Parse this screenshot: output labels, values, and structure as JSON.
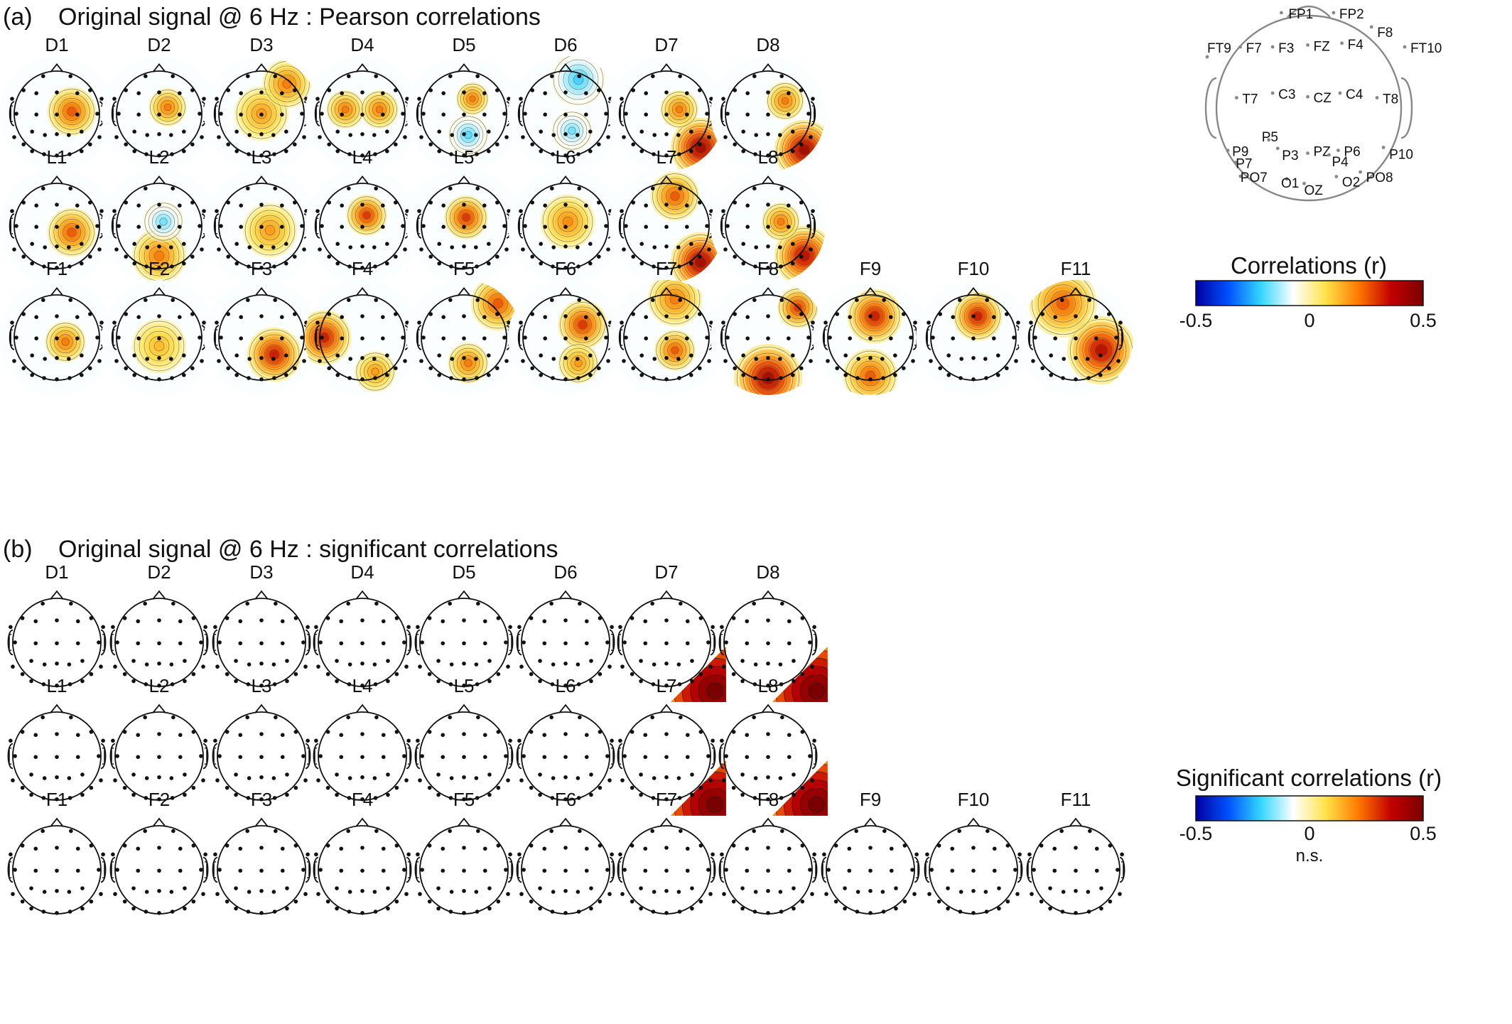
{
  "panel_a": {
    "letter": "(a)",
    "title": "Original signal @ 6 Hz : Pearson correlations",
    "rows": [
      [
        "D1",
        "D2",
        "D3",
        "D4",
        "D5",
        "D6",
        "D7",
        "D8"
      ],
      [
        "L1",
        "L2",
        "L3",
        "L4",
        "L5",
        "L6",
        "L7",
        "L8"
      ],
      [
        "F1",
        "F2",
        "F3",
        "F4",
        "F5",
        "F6",
        "F7",
        "F8",
        "F9",
        "F10",
        "F11"
      ]
    ],
    "hotspots": {
      "D1": [
        [
          0.35,
          -0.05,
          0.18,
          0.6
        ]
      ],
      "D2": [
        [
          0.2,
          -0.15,
          0.14,
          0.5
        ]
      ],
      "D3": [
        [
          0.0,
          0.0,
          0.2,
          0.4
        ],
        [
          0.6,
          -0.7,
          0.18,
          0.5
        ]
      ],
      "D4": [
        [
          -0.4,
          -0.1,
          0.14,
          0.5
        ],
        [
          0.4,
          -0.1,
          0.14,
          0.5
        ]
      ],
      "D5": [
        [
          0.2,
          -0.35,
          0.12,
          0.5
        ],
        [
          0.1,
          0.5,
          0.15,
          -0.45
        ]
      ],
      "D6": [
        [
          0.15,
          0.4,
          0.15,
          -0.4
        ],
        [
          0.3,
          -0.8,
          0.2,
          -0.5
        ]
      ],
      "D7": [
        [
          0.8,
          0.8,
          0.22,
          1
        ],
        [
          0.3,
          -0.1,
          0.14,
          0.5
        ]
      ],
      "D8": [
        [
          0.85,
          0.85,
          0.22,
          1
        ],
        [
          0.4,
          -0.3,
          0.14,
          0.5
        ]
      ],
      "L1": [
        [
          0.35,
          0.15,
          0.18,
          0.6
        ]
      ],
      "L2": [
        [
          0.0,
          0.7,
          0.2,
          0.5
        ],
        [
          0.1,
          -0.1,
          0.15,
          -0.4
        ]
      ],
      "L3": [
        [
          0.2,
          0.1,
          0.2,
          0.4
        ]
      ],
      "L4": [
        [
          0.1,
          -0.25,
          0.15,
          0.7
        ]
      ],
      "L5": [
        [
          0.05,
          -0.2,
          0.16,
          0.7
        ]
      ],
      "L6": [
        [
          0.05,
          -0.1,
          0.2,
          0.45
        ]
      ],
      "L7": [
        [
          0.8,
          0.85,
          0.22,
          1
        ],
        [
          0.2,
          -0.7,
          0.18,
          0.6
        ]
      ],
      "L8": [
        [
          0.85,
          0.7,
          0.22,
          0.9
        ],
        [
          0.3,
          -0.1,
          0.14,
          0.5
        ]
      ],
      "F1": [
        [
          0.2,
          0.1,
          0.15,
          0.5
        ]
      ],
      "F2": [
        [
          0.0,
          0.2,
          0.2,
          0.3
        ]
      ],
      "F3": [
        [
          0.3,
          0.4,
          0.2,
          0.8
        ]
      ],
      "F4": [
        [
          -0.9,
          0.0,
          0.2,
          0.8
        ],
        [
          0.3,
          0.8,
          0.15,
          0.4
        ]
      ],
      "F5": [
        [
          0.8,
          -0.8,
          0.2,
          0.6
        ],
        [
          0.1,
          0.6,
          0.15,
          0.5
        ]
      ],
      "F6": [
        [
          0.4,
          -0.3,
          0.18,
          0.7
        ],
        [
          0.3,
          0.6,
          0.15,
          0.4
        ]
      ],
      "F7": [
        [
          0.2,
          0.3,
          0.15,
          0.6
        ],
        [
          0.2,
          -0.9,
          0.2,
          0.5
        ]
      ],
      "F8": [
        [
          0.0,
          0.95,
          0.25,
          1
        ],
        [
          0.7,
          -0.7,
          0.15,
          0.7
        ]
      ],
      "F9": [
        [
          0.1,
          -0.5,
          0.2,
          0.8
        ],
        [
          0.0,
          0.9,
          0.2,
          0.6
        ]
      ],
      "F10": [
        [
          0.1,
          -0.5,
          0.18,
          0.8
        ]
      ],
      "F11": [
        [
          0.6,
          0.3,
          0.25,
          0.9
        ],
        [
          -0.3,
          -0.8,
          0.25,
          0.6
        ]
      ]
    },
    "electrode_map": {
      "labels": [
        "FP1",
        "FP2",
        "F8",
        "FT9",
        "F7",
        "F3",
        "FZ",
        "F4",
        "FT10",
        "T7",
        "C3",
        "CZ",
        "C4",
        "T8",
        "P5",
        "P9",
        "P3",
        "PZ",
        "P6",
        "P4",
        "P10",
        "P7",
        "PO7",
        "O1",
        "OZ",
        "O2",
        "PO8"
      ]
    },
    "colorbar": {
      "title": "Correlations (r)",
      "ticks": [
        "-0.5",
        "0",
        "0.5"
      ]
    }
  },
  "panel_b": {
    "letter": "(b)",
    "title": "Original signal @ 6 Hz : significant correlations",
    "rows": [
      [
        "D1",
        "D2",
        "D3",
        "D4",
        "D5",
        "D6",
        "D7",
        "D8"
      ],
      [
        "L1",
        "L2",
        "L3",
        "L4",
        "L5",
        "L6",
        "L7",
        "L8"
      ],
      [
        "F1",
        "F2",
        "F3",
        "F4",
        "F5",
        "F6",
        "F7",
        "F8",
        "F9",
        "F10",
        "F11"
      ]
    ],
    "significant": [
      "D7",
      "D8",
      "L7",
      "L8"
    ],
    "colorbar": {
      "title": "Significant correlations (r)",
      "ticks": [
        "-0.5",
        "0",
        "0.5"
      ],
      "note": "n.s."
    }
  },
  "colormap": [
    "#0000a0",
    "#0050ff",
    "#33d6ff",
    "#ffffff",
    "#ffe34a",
    "#ff7a00",
    "#c30000",
    "#7a0000"
  ]
}
